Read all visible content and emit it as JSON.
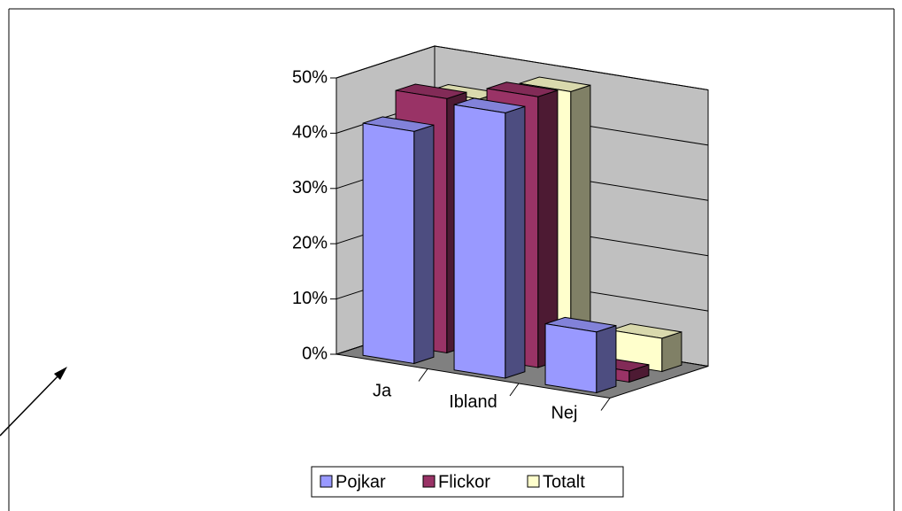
{
  "chart_data": {
    "type": "bar3d",
    "categories": [
      "Ja",
      "Ibland",
      "Nej"
    ],
    "series": [
      {
        "name": "Pojkar",
        "color": "#9999ff",
        "values": [
          42,
          48,
          11
        ]
      },
      {
        "name": "Flickor",
        "color": "#993366",
        "values": [
          46,
          49,
          2
        ]
      },
      {
        "name": "Totalt",
        "color": "#ffffcc",
        "values": [
          44,
          48,
          6
        ]
      }
    ],
    "ylim": [
      0,
      50
    ],
    "yticks": [
      {
        "value": 0,
        "label": "0%"
      },
      {
        "value": 10,
        "label": "10%"
      },
      {
        "value": 20,
        "label": "20%"
      },
      {
        "value": 30,
        "label": "30%"
      },
      {
        "value": 40,
        "label": "40%"
      },
      {
        "value": 50,
        "label": "50%"
      }
    ],
    "grid": true
  }
}
